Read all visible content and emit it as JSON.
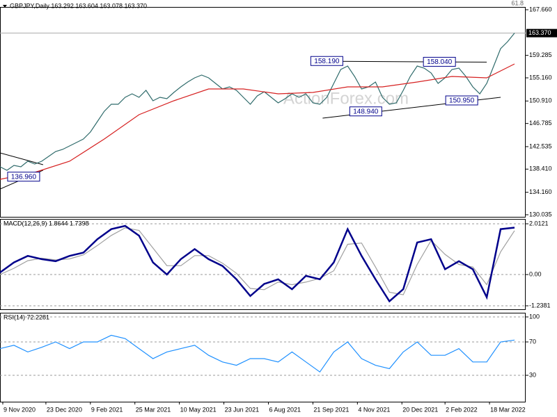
{
  "chart_data": [
    {
      "type": "line",
      "title": "GBPJPY,Daily 163.292 163.604 163.078 163.370",
      "xlim": [
        0,
        378
      ],
      "ylim": [
        129.65,
        168.17
      ],
      "yticks": [
        {
          "value": 167.66,
          "label": "167.660"
        },
        159.285,
        {
          "value": 155.16,
          "label": "155.160"
        },
        {
          "value": 150.91,
          "label": "150.910"
        },
        146.785,
        142.535,
        {
          "value": 138.41,
          "label": "138.410"
        },
        {
          "value": 134.16,
          "label": "134.160"
        },
        130.035
      ],
      "current_price": {
        "value": 163.37,
        "label": "163.370"
      },
      "fib_label": "61.8",
      "watermark": "ActionForex.com",
      "series": [
        {
          "color": "#2f6b6b",
          "x": [
            0,
            5,
            10,
            15,
            20,
            25,
            30,
            35,
            40,
            45,
            50,
            55,
            60,
            65,
            70,
            75,
            80,
            85,
            90,
            95,
            100,
            105,
            110,
            115,
            120,
            125,
            130,
            135,
            140,
            145,
            150,
            155,
            160,
            165,
            170,
            175,
            180,
            185,
            190,
            195,
            200,
            205,
            210,
            215,
            220,
            225,
            230,
            235,
            240,
            245,
            250,
            255,
            260,
            265,
            270,
            275,
            280,
            285,
            290,
            295,
            300,
            305,
            310,
            315,
            320,
            325,
            330,
            335,
            340,
            345,
            350,
            355,
            360,
            365,
            370
          ],
          "values": [
            138.83,
            138.2,
            139.09,
            138.83,
            139.85,
            139.34,
            139.85,
            140.75,
            141.64,
            142.02,
            142.66,
            143.3,
            143.94,
            145.21,
            147.12,
            149.03,
            150.31,
            150.31,
            151.59,
            152.23,
            151.59,
            152.86,
            150.95,
            151.59,
            151.33,
            152.48,
            153.5,
            154.39,
            155.16,
            155.67,
            155.16,
            154.14,
            153.12,
            153.5,
            152.86,
            151.59,
            150.31,
            151.84,
            152.61,
            151.59,
            150.57,
            151.33,
            152.23,
            151.59,
            152.23,
            150.57,
            150.31,
            151.59,
            154.14,
            156.69,
            157.33,
            155.42,
            153.12,
            153.5,
            154.39,
            151.59,
            150.31,
            150.57,
            152.86,
            155.42,
            157.33,
            156.95,
            156.05,
            154.14,
            155.16,
            156.69,
            156.95,
            155.42,
            153.5,
            152.23,
            154.14,
            157.33,
            160.52,
            161.79,
            163.37
          ]
        },
        {
          "color": "#d62020",
          "x": [
            0,
            25,
            50,
            75,
            100,
            125,
            150,
            175,
            200,
            225,
            250,
            275,
            300,
            325,
            350,
            370
          ],
          "values": [
            136.54,
            137.81,
            139.85,
            143.94,
            148.4,
            150.95,
            153.12,
            153.12,
            152.23,
            152.48,
            153.5,
            153.5,
            154.39,
            155.42,
            155.16,
            157.71
          ]
        }
      ],
      "annotations": [
        {
          "label": "158.190",
          "value": 158.19,
          "x": 235
        },
        {
          "label": "158.040",
          "value": 158.04,
          "x": 316
        },
        {
          "label": "148.940",
          "value": 148.94,
          "x": 263
        },
        {
          "label": "150.950",
          "value": 150.95,
          "x": 332
        },
        {
          "label": "136.960",
          "value": 136.96,
          "x": 17
        }
      ],
      "trendlines": [
        {
          "x": [
            243,
            350
          ],
          "y": [
            158.19,
            158.04
          ]
        },
        {
          "x": [
            232,
            360
          ],
          "y": [
            147.76,
            151.59
          ]
        },
        {
          "x": [
            0,
            31
          ],
          "y": [
            141.38,
            139.22
          ]
        },
        {
          "x": [
            0,
            31
          ],
          "y": [
            134.75,
            138.2
          ]
        }
      ]
    },
    {
      "type": "line",
      "title": "MACD(12,26,9) 1.8644 1.7398",
      "xlim": [
        0,
        378
      ],
      "ylim": [
        -1.376,
        2.205
      ],
      "yticks": [
        2.0121,
        {
          "value": 0,
          "label": "0.00"
        },
        -1.2381
      ],
      "grid": true,
      "series": [
        {
          "color": "#a0a0a0",
          "x": [
            0,
            10,
            20,
            30,
            40,
            50,
            60,
            70,
            80,
            90,
            100,
            110,
            120,
            130,
            140,
            150,
            160,
            170,
            180,
            190,
            200,
            210,
            220,
            230,
            240,
            250,
            260,
            270,
            280,
            290,
            300,
            310,
            320,
            330,
            340,
            350,
            360,
            370
          ],
          "values": [
            0.0,
            0.25,
            0.55,
            0.65,
            0.58,
            0.62,
            0.78,
            1.15,
            1.55,
            1.85,
            1.75,
            1.05,
            0.35,
            0.35,
            0.75,
            0.75,
            0.45,
            0.05,
            -0.55,
            -0.6,
            -0.3,
            -0.4,
            -0.3,
            -0.15,
            0.15,
            1.2,
            1.25,
            0.3,
            -0.7,
            -0.8,
            0.4,
            1.35,
            0.8,
            0.4,
            0.3,
            -0.4,
            0.9,
            1.74
          ]
        },
        {
          "color": "#00008b",
          "x": [
            0,
            10,
            20,
            30,
            40,
            50,
            60,
            70,
            80,
            90,
            100,
            110,
            120,
            130,
            140,
            150,
            160,
            170,
            180,
            190,
            200,
            210,
            220,
            230,
            240,
            250,
            260,
            270,
            280,
            290,
            300,
            310,
            320,
            330,
            340,
            350,
            360,
            370
          ],
          "values": [
            0.08,
            0.48,
            0.74,
            0.61,
            0.53,
            0.74,
            0.87,
            1.4,
            1.8,
            1.93,
            1.54,
            0.48,
            0,
            0.61,
            1.01,
            0.61,
            0.34,
            -0.19,
            -0.85,
            -0.37,
            -0.19,
            -0.58,
            -0.05,
            -0.19,
            0.48,
            1.8,
            0.74,
            -0.19,
            -1.06,
            -0.58,
            1.27,
            1.4,
            0.21,
            0.53,
            0.21,
            -0.9,
            1.8,
            1.86
          ]
        }
      ]
    },
    {
      "type": "line",
      "title": "RSI(14) 72.2281",
      "xlim": [
        0,
        378
      ],
      "ylim": [
        -1.67,
        105
      ],
      "yticks": [
        100,
        70,
        30
      ],
      "grid": true,
      "xticks": [
        {
          "value": 2,
          "label": "9 Nov 2020"
        },
        {
          "value": 33,
          "label": "23 Dec 2020"
        },
        {
          "value": 65,
          "label": "9 Feb 2021"
        },
        {
          "value": 97,
          "label": "25 Mar 2021"
        },
        {
          "value": 129,
          "label": "10 May 2021"
        },
        {
          "value": 161,
          "label": "23 Jun 2021"
        },
        {
          "value": 193,
          "label": "6 Aug 2021"
        },
        {
          "value": 225,
          "label": "21 Sep 2021"
        },
        {
          "value": 257,
          "label": "4 Nov 2021"
        },
        {
          "value": 289,
          "label": "20 Dec 2021"
        },
        {
          "value": 320,
          "label": "2 Feb 2022"
        },
        {
          "value": 352,
          "label": "18 Mar 2022"
        }
      ],
      "series": [
        {
          "color": "#1e90ff",
          "x": [
            0,
            10,
            20,
            30,
            40,
            50,
            60,
            70,
            80,
            90,
            100,
            110,
            120,
            130,
            140,
            150,
            160,
            170,
            180,
            190,
            200,
            210,
            220,
            230,
            240,
            250,
            260,
            270,
            280,
            290,
            300,
            310,
            320,
            330,
            340,
            350,
            360,
            370
          ],
          "values": [
            62,
            66,
            58,
            63.6,
            70,
            62,
            70,
            70,
            78,
            74,
            62,
            50,
            58,
            62,
            66,
            54,
            46,
            42,
            50,
            50,
            46,
            58,
            46,
            34,
            58,
            70,
            50,
            42,
            38,
            58,
            70,
            54,
            54,
            62,
            46,
            46,
            70,
            72.23
          ]
        }
      ]
    }
  ]
}
